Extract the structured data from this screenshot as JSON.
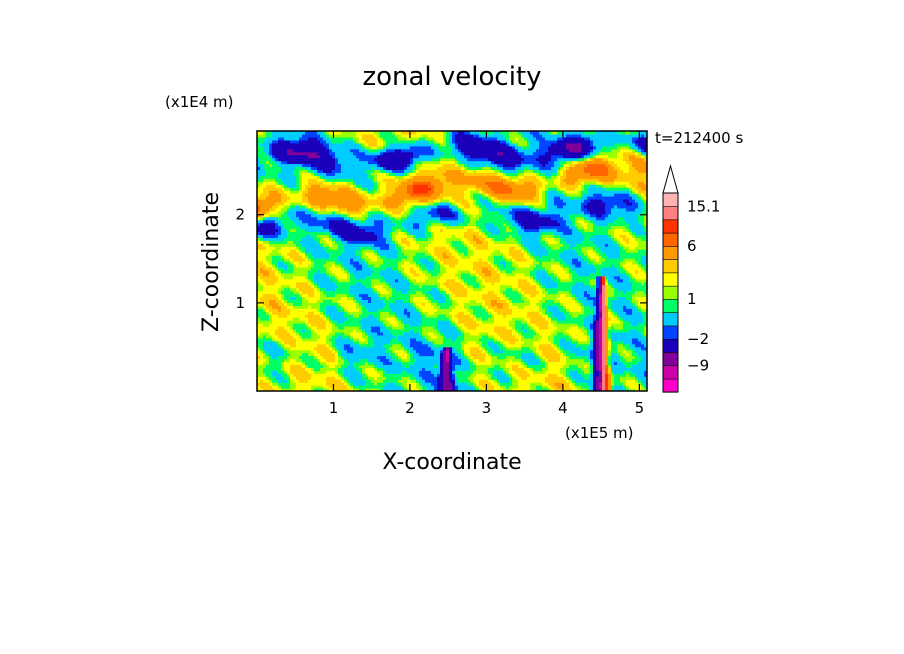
{
  "chart_data": {
    "type": "heatmap",
    "title": "zonal velocity",
    "xlabel": "X-coordinate",
    "ylabel": "Z-coordinate",
    "x_multiplier": "(x1E5 m)",
    "y_multiplier": "(x1E4 m)",
    "time_label": "t=212400 s",
    "xlim": [
      0,
      5.1
    ],
    "ylim": [
      0,
      2.95
    ],
    "x_ticks": [
      1,
      2,
      3,
      4,
      5
    ],
    "x_tick_labels": [
      "1",
      "2",
      "3",
      "4",
      "5"
    ],
    "y_ticks": [
      1,
      2
    ],
    "y_tick_labels": [
      "1",
      "2"
    ],
    "colorbar": {
      "colors": [
        "#ff00cc",
        "#cc00aa",
        "#800099",
        "#1a00bb",
        "#0044ff",
        "#00ccff",
        "#00ff66",
        "#99ff00",
        "#ffff00",
        "#ffcc00",
        "#ff9900",
        "#ff6600",
        "#ff3300",
        "#ff8080",
        "#ffb3b3"
      ],
      "tick_labels": [
        {
          "value": -9,
          "label": "−9"
        },
        {
          "value": -2,
          "label": "−2"
        },
        {
          "value": 1,
          "label": "1"
        },
        {
          "value": 6,
          "label": "6"
        },
        {
          "value": 15.1,
          "label": "15.1"
        }
      ],
      "extend": "max"
    },
    "field_features": [
      {
        "kind": "band",
        "z": 2.3,
        "slope": 0.08,
        "sign": "positive",
        "strength": 6
      },
      {
        "kind": "band",
        "z": 1.95,
        "slope": 0.05,
        "sign": "negative",
        "strength": -4
      },
      {
        "kind": "band",
        "z": 2.7,
        "slope": 0.03,
        "sign": "negative",
        "strength": -7
      },
      {
        "kind": "spike",
        "x": 2.48,
        "z_top": 0.5,
        "sign": "negative"
      },
      {
        "kind": "spike",
        "x": 4.5,
        "z_top": 1.3,
        "sign": "mixed"
      }
    ]
  }
}
